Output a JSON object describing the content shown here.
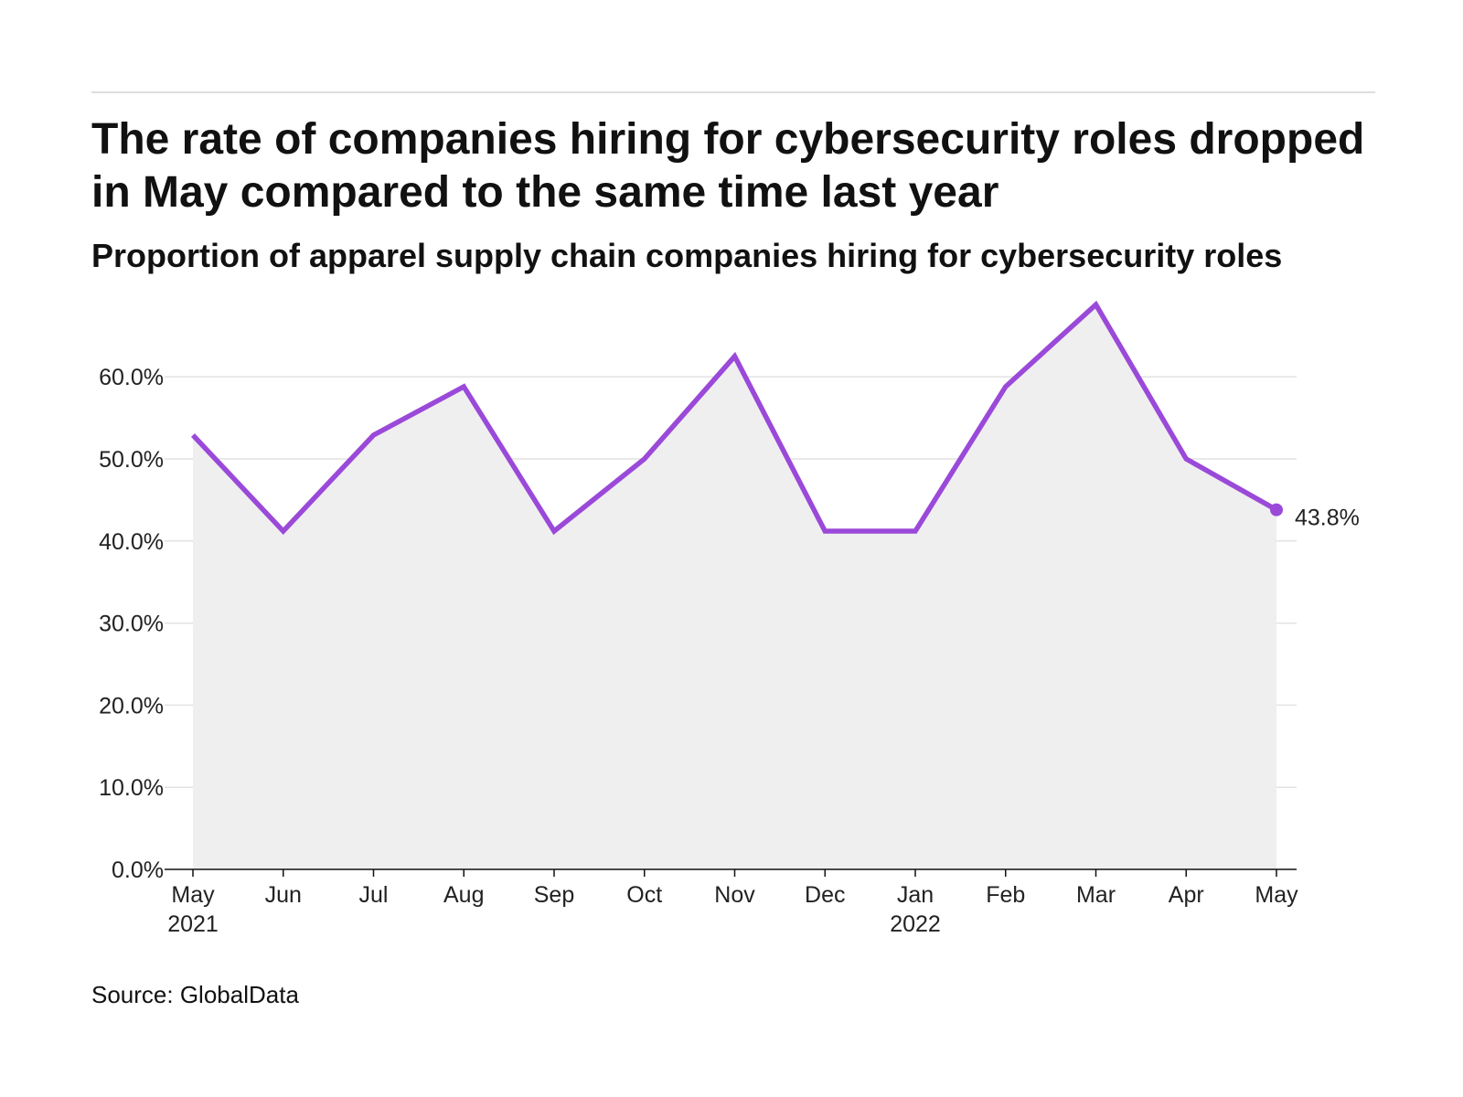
{
  "header": {
    "title": "The rate of companies hiring for cybersecurity roles dropped in May compared to the same time last year",
    "subtitle": "Proportion of apparel supply chain companies hiring for cybersecurity roles"
  },
  "footer": {
    "source": "Source: GlobalData"
  },
  "colors": {
    "line": "#9a49d9",
    "area": "#efefef",
    "grid": "#e2e2e2",
    "axis": "#111111"
  },
  "chart_data": {
    "type": "area",
    "title": "The rate of companies hiring for cybersecurity roles dropped in May compared to the same time last year",
    "subtitle": "Proportion of apparel supply chain companies hiring for cybersecurity roles",
    "categories": [
      "May",
      "Jun",
      "Jul",
      "Aug",
      "Sep",
      "Oct",
      "Nov",
      "Dec",
      "Jan",
      "Feb",
      "Mar",
      "Apr",
      "May"
    ],
    "year_labels": [
      "2021",
      "",
      "",
      "",
      "",
      "",
      "",
      "",
      "2022",
      "",
      "",
      "",
      ""
    ],
    "series": [
      {
        "values": [
          52.9,
          41.2,
          52.9,
          58.8,
          41.2,
          50.0,
          62.5,
          41.2,
          41.2,
          58.8,
          68.8,
          50.0,
          43.8
        ]
      }
    ],
    "ylim": [
      0,
      70
    ],
    "yticks": [
      0,
      10,
      20,
      30,
      40,
      50,
      60
    ],
    "ytick_labels": [
      "0.0%",
      "10.0%",
      "20.0%",
      "30.0%",
      "40.0%",
      "50.0%",
      "60.0%"
    ],
    "end_label": "43.8%",
    "xlabel": "",
    "ylabel": "",
    "grid": true,
    "legend": "none"
  }
}
